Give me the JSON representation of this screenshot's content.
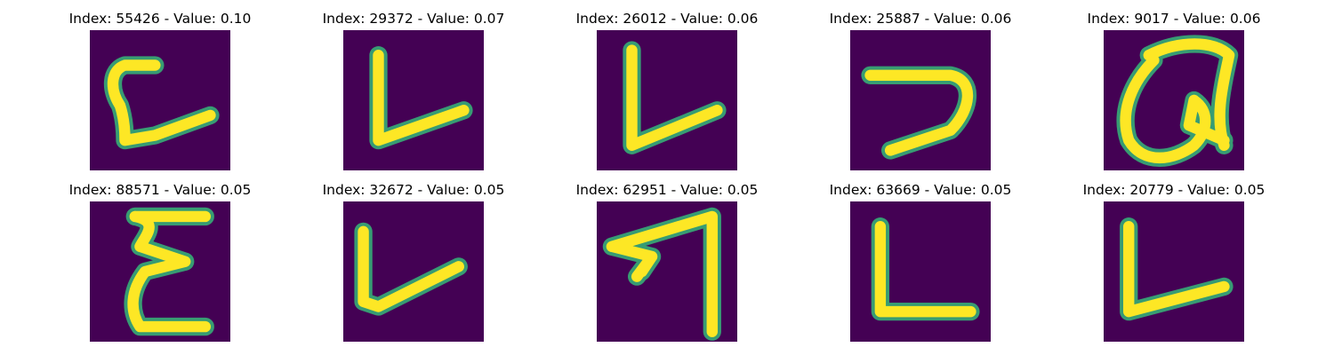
{
  "panels": [
    {
      "index": "55426",
      "value": "0.10",
      "title": "Index: 55426 - Value: 0.10",
      "glyph": "bracket-stroke"
    },
    {
      "index": "29372",
      "value": "0.07",
      "title": "Index: 29372 - Value: 0.07",
      "glyph": "L-stroke"
    },
    {
      "index": "26012",
      "value": "0.06",
      "title": "Index: 26012 - Value: 0.06",
      "glyph": "L-stroke"
    },
    {
      "index": "25887",
      "value": "0.06",
      "title": "Index: 25887 - Value: 0.06",
      "glyph": "hook-stroke"
    },
    {
      "index": "9017",
      "value": "0.06",
      "title": "Index: 9017 - Value: 0.06",
      "glyph": "loop-stroke"
    },
    {
      "index": "88571",
      "value": "0.05",
      "title": "Index: 88571 - Value: 0.05",
      "glyph": "E-stroke"
    },
    {
      "index": "32672",
      "value": "0.05",
      "title": "Index: 32672 - Value: 0.05",
      "glyph": "L-stroke"
    },
    {
      "index": "62951",
      "value": "0.05",
      "title": "Index: 62951 - Value: 0.05",
      "glyph": "arrow-stroke"
    },
    {
      "index": "63669",
      "value": "0.05",
      "title": "Index: 63669 - Value: 0.05",
      "glyph": "L-stroke"
    },
    {
      "index": "20779",
      "value": "0.05",
      "title": "Index: 20779 - Value: 0.05",
      "glyph": "L-stroke"
    }
  ],
  "colors": {
    "background": "#440154",
    "stroke_core": "#fde725",
    "stroke_edge": "#35b779",
    "page": "#ffffff"
  }
}
